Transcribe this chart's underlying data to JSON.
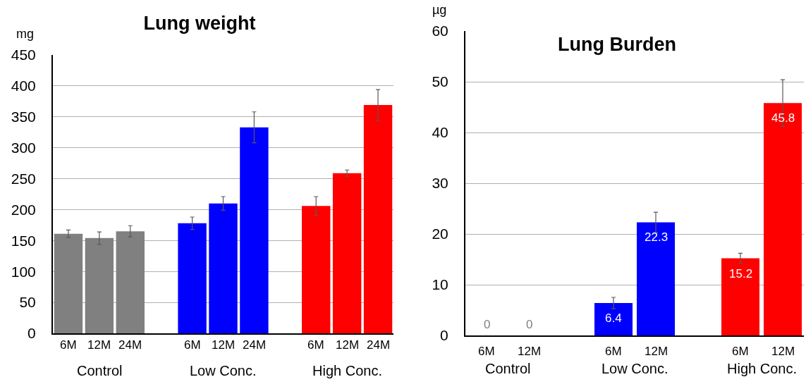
{
  "chart_data": [
    {
      "type": "bar",
      "title": "Lung weight",
      "ylabel": "mg",
      "categories": [
        "6M",
        "12M",
        "24M",
        null,
        "6M",
        "12M",
        "24M",
        null,
        "6M",
        "12M",
        "24M"
      ],
      "values": [
        161,
        154,
        165,
        null,
        178,
        210,
        333,
        null,
        206,
        259,
        369
      ],
      "colors": [
        "#808080",
        "#808080",
        "#808080",
        "#ffffff",
        "#0000ff",
        "#0000ff",
        "#0000ff",
        "#ffffff",
        "#ff0000",
        "#ff0000",
        "#ff0000"
      ],
      "errors": [
        6,
        10,
        9,
        null,
        10,
        11,
        25,
        null,
        15,
        5,
        25
      ],
      "ylim": [
        0,
        450
      ],
      "yticks": [
        0,
        50,
        100,
        150,
        200,
        250,
        300,
        350,
        400,
        450
      ],
      "grid": "y",
      "annotations": [
        "Control",
        "Low Conc.",
        "High Conc."
      ]
    },
    {
      "type": "bar",
      "title": "Lung Burden",
      "ylabel": "µg",
      "categories": [
        "6M",
        "12M",
        null,
        "6M",
        "12M",
        null,
        "6M",
        "12M"
      ],
      "values": [
        0,
        0,
        null,
        6.4,
        22.3,
        null,
        15.2,
        45.8
      ],
      "colors": [
        "#808080",
        "#808080",
        "#ffffff",
        "#0000ff",
        "#0000ff",
        "#ffffff",
        "#ff0000",
        "#ff0000"
      ],
      "errors": [
        null,
        null,
        null,
        1.1,
        2,
        null,
        1,
        4.6
      ],
      "ylim": [
        0,
        60
      ],
      "yticks": [
        0,
        10,
        20,
        30,
        40,
        50,
        60
      ],
      "grid": "y",
      "data_labels": true,
      "annotations": [
        "Control",
        "Low Conc.",
        "High Conc."
      ]
    }
  ]
}
